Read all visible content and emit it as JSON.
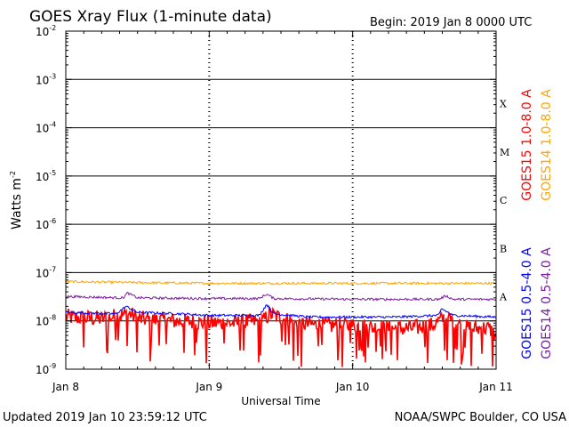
{
  "header": {
    "title": "GOES Xray Flux (1-minute data)",
    "begin_label": "Begin:  2019 Jan 8 0000 UTC"
  },
  "footer": {
    "updated": "Updated 2019 Jan 10 23:59:12 UTC",
    "credit": "NOAA/SWPC Boulder, CO USA"
  },
  "chart_data": {
    "type": "line",
    "title": "GOES Xray Flux (1-minute data)",
    "xlabel": "Universal Time",
    "ylabel": "Watts m",
    "ylabel_sup": "-2",
    "y_scale": "log",
    "ylim": [
      1e-09,
      0.01
    ],
    "xlim": [
      0,
      3
    ],
    "x_ticks": [
      {
        "pos": 0,
        "label": "Jan 8"
      },
      {
        "pos": 1,
        "label": "Jan 9"
      },
      {
        "pos": 2,
        "label": "Jan 10"
      },
      {
        "pos": 3,
        "label": "Jan 11"
      }
    ],
    "y_ticks": [
      {
        "value": 1e-09,
        "base": "10",
        "exp": "-9"
      },
      {
        "value": 1e-08,
        "base": "10",
        "exp": "-8"
      },
      {
        "value": 1e-07,
        "base": "10",
        "exp": "-7"
      },
      {
        "value": 1e-06,
        "base": "10",
        "exp": "-6"
      },
      {
        "value": 1e-05,
        "base": "10",
        "exp": "-5"
      },
      {
        "value": 0.0001,
        "base": "10",
        "exp": "-4"
      },
      {
        "value": 0.001,
        "base": "10",
        "exp": "-3"
      },
      {
        "value": 0.01,
        "base": "10",
        "exp": "-2"
      }
    ],
    "flare_classes": [
      {
        "label": "A",
        "value": 1e-08
      },
      {
        "label": "B",
        "value": 1e-07
      },
      {
        "label": "C",
        "value": 1e-06
      },
      {
        "label": "M",
        "value": 1e-05
      },
      {
        "label": "X",
        "value": 0.0001
      }
    ],
    "grid": "horizontal lines at each decade",
    "legend_position": "right, vertical",
    "series": [
      {
        "name": "GOES15 1.0-8.0 A",
        "color": "#ff0000",
        "noisy": true,
        "x": [
          0,
          0.25,
          0.45,
          0.5,
          0.75,
          1.0,
          1.2,
          1.38,
          1.42,
          1.6,
          1.8,
          2.0,
          2.2,
          2.4,
          2.55,
          2.65,
          2.8,
          2.95,
          3.0
        ],
        "y": [
          1.2e-08,
          1.1e-08,
          1.4e-08,
          1.1e-08,
          1e-08,
          9e-09,
          9e-09,
          1e-08,
          1.4e-08,
          9e-09,
          8e-09,
          8e-09,
          7e-09,
          7e-09,
          8e-09,
          1.2e-08,
          7e-09,
          7e-09,
          5e-09
        ]
      },
      {
        "name": "GOES14 1.0-8.0 A",
        "color": "#ffa500",
        "noisy": false,
        "x": [
          0,
          0.5,
          1.0,
          1.5,
          2.0,
          2.5,
          3.0
        ],
        "y": [
          6.5e-08,
          6.2e-08,
          6e-08,
          6e-08,
          6e-08,
          6e-08,
          6e-08
        ]
      },
      {
        "name": "GOES15 0.5-4.0 A",
        "color": "#0000ff",
        "noisy": false,
        "x": [
          0,
          0.35,
          0.42,
          0.5,
          0.8,
          1.0,
          1.35,
          1.4,
          1.45,
          1.7,
          2.0,
          2.3,
          2.6,
          2.62,
          2.7,
          3.0
        ],
        "y": [
          1.5e-08,
          1.4e-08,
          2e-08,
          1.5e-08,
          1.4e-08,
          1.3e-08,
          1.3e-08,
          2.2e-08,
          1.4e-08,
          1.2e-08,
          1.2e-08,
          1.2e-08,
          1.3e-08,
          1.8e-08,
          1.3e-08,
          1.2e-08
        ]
      },
      {
        "name": "GOES14 0.5-4.0 A",
        "color": "#7a1fa0",
        "noisy": false,
        "x": [
          0,
          0.4,
          0.43,
          0.5,
          1.0,
          1.35,
          1.4,
          1.45,
          2.0,
          2.6,
          2.65,
          2.7,
          3.0
        ],
        "y": [
          3.2e-08,
          3e-08,
          3.8e-08,
          3e-08,
          2.9e-08,
          2.9e-08,
          3.6e-08,
          2.9e-08,
          2.8e-08,
          2.8e-08,
          3.3e-08,
          2.8e-08,
          2.8e-08
        ]
      }
    ]
  }
}
